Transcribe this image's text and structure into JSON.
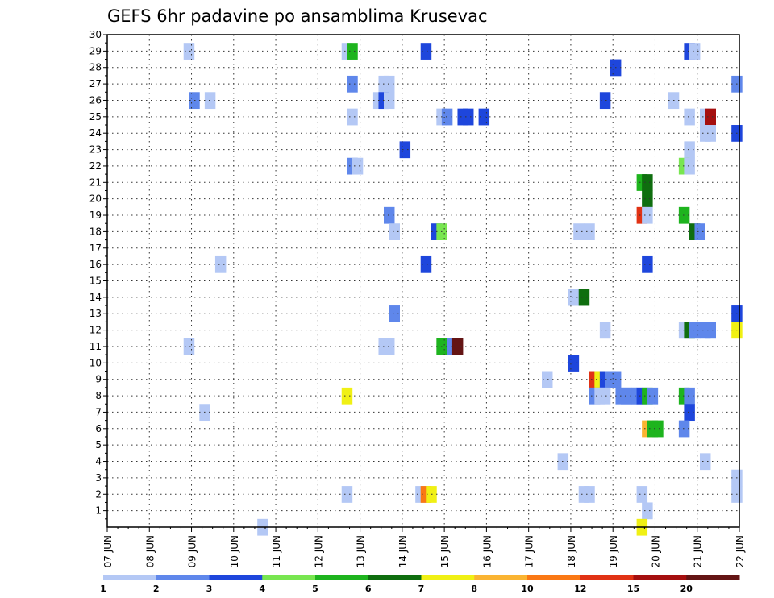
{
  "chart_data": {
    "type": "heatmap",
    "title": "GEFS 6hr padavine po ansamblima Krusevac",
    "x_tick_labels": [
      "07 JUN",
      "08 JUN",
      "09 JUN",
      "10 JUN",
      "11 JUN",
      "12 JUN",
      "13 JUN",
      "14 JUN",
      "15 JUN",
      "16 JUN",
      "17 JUN",
      "18 JUN",
      "19 JUN",
      "20 JUN",
      "21 JUN",
      "22 JUN"
    ],
    "y_tick_labels": [
      "1",
      "2",
      "3",
      "4",
      "5",
      "6",
      "7",
      "8",
      "9",
      "10",
      "11",
      "12",
      "13",
      "14",
      "15",
      "16",
      "17",
      "18",
      "19",
      "20",
      "21",
      "22",
      "23",
      "24",
      "25",
      "26",
      "27",
      "28",
      "29",
      "30"
    ],
    "xlim_days": [
      0,
      15
    ],
    "ylim": [
      0,
      30
    ],
    "grid": "dotted",
    "colorbar": {
      "labels": [
        "1",
        "2",
        "3",
        "4",
        "5",
        "6",
        "7",
        "8",
        "10",
        "12",
        "15",
        "20"
      ],
      "colors": [
        "#b4c8f5",
        "#5f87eb",
        "#1e46dc",
        "#78e650",
        "#1eb41e",
        "#0f6e0f",
        "#f0f014",
        "#fab432",
        "#fa7814",
        "#e13214",
        "#a50f0f",
        "#641414"
      ]
    },
    "cells": [
      {
        "t": 7.75,
        "m": 29,
        "c": 0
      },
      {
        "t": 22.75,
        "m": 29,
        "c": 0
      },
      {
        "t": 23.25,
        "m": 29,
        "c": 4
      },
      {
        "t": 30.25,
        "m": 29,
        "c": 2
      },
      {
        "t": 55.25,
        "m": 29,
        "c": 2
      },
      {
        "t": 55.75,
        "m": 29,
        "c": 0
      },
      {
        "t": 48.25,
        "m": 28,
        "c": 2
      },
      {
        "t": 23.25,
        "m": 27,
        "c": 1
      },
      {
        "t": 26.25,
        "m": 27,
        "c": 0
      },
      {
        "t": 26.75,
        "m": 27,
        "c": 0
      },
      {
        "t": 59.75,
        "m": 27,
        "c": 1
      },
      {
        "t": 8.25,
        "m": 26,
        "c": 1
      },
      {
        "t": 9.75,
        "m": 26,
        "c": 0
      },
      {
        "t": 25.75,
        "m": 26,
        "c": 0
      },
      {
        "t": 26.25,
        "m": 26,
        "c": 2
      },
      {
        "t": 26.75,
        "m": 26,
        "c": 0
      },
      {
        "t": 47.25,
        "m": 26,
        "c": 2
      },
      {
        "t": 53.75,
        "m": 26,
        "c": 0
      },
      {
        "t": 23.25,
        "m": 25,
        "c": 0
      },
      {
        "t": 31.75,
        "m": 25,
        "c": 0
      },
      {
        "t": 32.25,
        "m": 25,
        "c": 1
      },
      {
        "t": 33.75,
        "m": 25,
        "c": 2
      },
      {
        "t": 34.25,
        "m": 25,
        "c": 2
      },
      {
        "t": 35.75,
        "m": 25,
        "c": 2
      },
      {
        "t": 55.25,
        "m": 25,
        "c": 0
      },
      {
        "t": 56.75,
        "m": 25,
        "c": 0
      },
      {
        "t": 57.25,
        "m": 25,
        "c": 10
      },
      {
        "t": 56.75,
        "m": 24,
        "c": 0
      },
      {
        "t": 57.25,
        "m": 24,
        "c": 0
      },
      {
        "t": 59.75,
        "m": 24,
        "c": 2
      },
      {
        "t": 28.25,
        "m": 23,
        "c": 2
      },
      {
        "t": 55.25,
        "m": 23,
        "c": 0
      },
      {
        "t": 23.25,
        "m": 22,
        "c": 1
      },
      {
        "t": 23.75,
        "m": 22,
        "c": 0
      },
      {
        "t": 54.75,
        "m": 22,
        "c": 3
      },
      {
        "t": 55.25,
        "m": 22,
        "c": 0
      },
      {
        "t": 50.75,
        "m": 21,
        "c": 4
      },
      {
        "t": 51.25,
        "m": 21,
        "c": 5
      },
      {
        "t": 51.25,
        "m": 20,
        "c": 5
      },
      {
        "t": 26.75,
        "m": 19,
        "c": 1
      },
      {
        "t": 50.75,
        "m": 19,
        "c": 9
      },
      {
        "t": 51.25,
        "m": 19,
        "c": 0
      },
      {
        "t": 54.75,
        "m": 19,
        "c": 4
      },
      {
        "t": 27.25,
        "m": 18,
        "c": 0
      },
      {
        "t": 31.25,
        "m": 18,
        "c": 2
      },
      {
        "t": 31.75,
        "m": 18,
        "c": 3
      },
      {
        "t": 44.75,
        "m": 18,
        "c": 0
      },
      {
        "t": 45.75,
        "m": 18,
        "c": 0
      },
      {
        "t": 55.75,
        "m": 18,
        "c": 5
      },
      {
        "t": 56.25,
        "m": 18,
        "c": 1
      },
      {
        "t": 10.75,
        "m": 16,
        "c": 0
      },
      {
        "t": 30.25,
        "m": 16,
        "c": 2
      },
      {
        "t": 51.25,
        "m": 16,
        "c": 2
      },
      {
        "t": 44.25,
        "m": 14,
        "c": 0
      },
      {
        "t": 44.75,
        "m": 14,
        "c": 0
      },
      {
        "t": 45.25,
        "m": 14,
        "c": 5
      },
      {
        "t": 27.25,
        "m": 13,
        "c": 1
      },
      {
        "t": 59.75,
        "m": 13,
        "c": 2
      },
      {
        "t": 47.25,
        "m": 12,
        "c": 0
      },
      {
        "t": 54.75,
        "m": 12,
        "c": 0
      },
      {
        "t": 55.25,
        "m": 12,
        "c": 5
      },
      {
        "t": 55.75,
        "m": 12,
        "c": 1
      },
      {
        "t": 56.75,
        "m": 12,
        "c": 1
      },
      {
        "t": 57.25,
        "m": 12,
        "c": 1
      },
      {
        "t": 59.75,
        "m": 12,
        "c": 6
      },
      {
        "t": 7.75,
        "m": 11,
        "c": 0
      },
      {
        "t": 26.25,
        "m": 11,
        "c": 0
      },
      {
        "t": 26.75,
        "m": 11,
        "c": 0
      },
      {
        "t": 31.75,
        "m": 11,
        "c": 4
      },
      {
        "t": 32.75,
        "m": 11,
        "c": 1
      },
      {
        "t": 33.25,
        "m": 11,
        "c": 11
      },
      {
        "t": 44.25,
        "m": 10,
        "c": 2
      },
      {
        "t": 41.75,
        "m": 9,
        "c": 0
      },
      {
        "t": 46.25,
        "m": 9,
        "c": 9
      },
      {
        "t": 46.75,
        "m": 9,
        "c": 6
      },
      {
        "t": 47.25,
        "m": 9,
        "c": 2
      },
      {
        "t": 47.75,
        "m": 9,
        "c": 1
      },
      {
        "t": 48.25,
        "m": 9,
        "c": 1
      },
      {
        "t": 22.75,
        "m": 8,
        "c": 6
      },
      {
        "t": 46.25,
        "m": 8,
        "c": 1
      },
      {
        "t": 46.75,
        "m": 8,
        "c": 0
      },
      {
        "t": 47.25,
        "m": 8,
        "c": 0
      },
      {
        "t": 48.75,
        "m": 8,
        "c": 1
      },
      {
        "t": 49.25,
        "m": 8,
        "c": 1
      },
      {
        "t": 49.75,
        "m": 8,
        "c": 1
      },
      {
        "t": 50.25,
        "m": 8,
        "c": 1
      },
      {
        "t": 50.75,
        "m": 8,
        "c": 2
      },
      {
        "t": 51.25,
        "m": 8,
        "c": 4
      },
      {
        "t": 51.75,
        "m": 8,
        "c": 1
      },
      {
        "t": 54.75,
        "m": 8,
        "c": 4
      },
      {
        "t": 55.25,
        "m": 8,
        "c": 1
      },
      {
        "t": 9.25,
        "m": 7,
        "c": 0
      },
      {
        "t": 55.25,
        "m": 7,
        "c": 2
      },
      {
        "t": 51.25,
        "m": 6,
        "c": 7
      },
      {
        "t": 51.75,
        "m": 6,
        "c": 4
      },
      {
        "t": 52.25,
        "m": 6,
        "c": 4
      },
      {
        "t": 54.75,
        "m": 6,
        "c": 1
      },
      {
        "t": 43.25,
        "m": 4,
        "c": 0
      },
      {
        "t": 56.75,
        "m": 4,
        "c": 0
      },
      {
        "t": 59.75,
        "m": 3,
        "c": 0
      },
      {
        "t": 22.75,
        "m": 2,
        "c": 0
      },
      {
        "t": 29.75,
        "m": 2,
        "c": 0
      },
      {
        "t": 30.25,
        "m": 2,
        "c": 8
      },
      {
        "t": 30.75,
        "m": 2,
        "c": 6
      },
      {
        "t": 45.25,
        "m": 2,
        "c": 0
      },
      {
        "t": 45.75,
        "m": 2,
        "c": 0
      },
      {
        "t": 50.75,
        "m": 2,
        "c": 0
      },
      {
        "t": 59.75,
        "m": 2,
        "c": 0
      },
      {
        "t": 51.25,
        "m": 1,
        "c": 0
      },
      {
        "t": 14.75,
        "m": 0,
        "c": 0
      },
      {
        "t": 50.75,
        "m": 0,
        "c": 6
      }
    ]
  }
}
